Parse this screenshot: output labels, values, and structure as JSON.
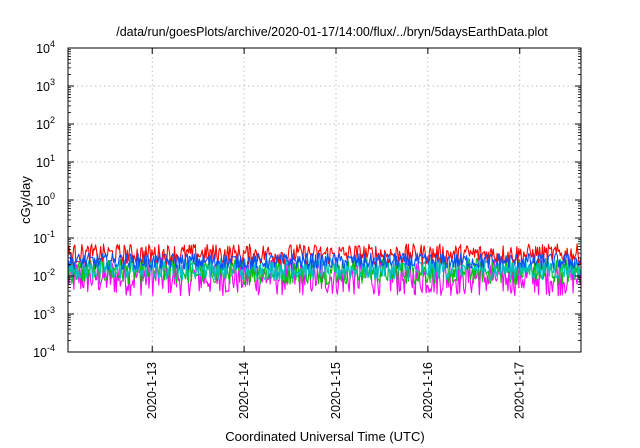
{
  "chart_data": {
    "type": "line",
    "title": "/data/run/goesPlots/archive/2020-01-17/14:00/flux/../bryn/5daysEarthData.plot",
    "xlabel": "Coordinated Universal Time (UTC)",
    "ylabel": "cGy/day",
    "yscale": "log",
    "ylim": [
      0.0001,
      10000
    ],
    "xlim": [
      "2020-01-12T02:00",
      "2020-01-17T16:00"
    ],
    "grid": true,
    "x_ticks": [
      "2020-1-13",
      "2020-1-14",
      "2020-1-15",
      "2020-1-16",
      "2020-1-17"
    ],
    "y_ticks": [
      {
        "base": "10",
        "exp": "-4"
      },
      {
        "base": "10",
        "exp": "-3"
      },
      {
        "base": "10",
        "exp": "-2"
      },
      {
        "base": "10",
        "exp": "-1"
      },
      {
        "base": "10",
        "exp": "0"
      },
      {
        "base": "10",
        "exp": "1"
      },
      {
        "base": "10",
        "exp": "2"
      },
      {
        "base": "10",
        "exp": "3"
      },
      {
        "base": "10",
        "exp": "4"
      }
    ],
    "series": [
      {
        "color": "#ff0000",
        "typical_range": [
          0.02,
          0.07
        ]
      },
      {
        "color": "#00c000",
        "typical_range": [
          0.006,
          0.03
        ]
      },
      {
        "color": "#00c0c0",
        "typical_range": [
          0.008,
          0.03
        ]
      },
      {
        "color": "#0050ff",
        "typical_range": [
          0.015,
          0.04
        ]
      },
      {
        "color": "#ff00ff",
        "typical_range": [
          0.003,
          0.03
        ]
      }
    ]
  }
}
